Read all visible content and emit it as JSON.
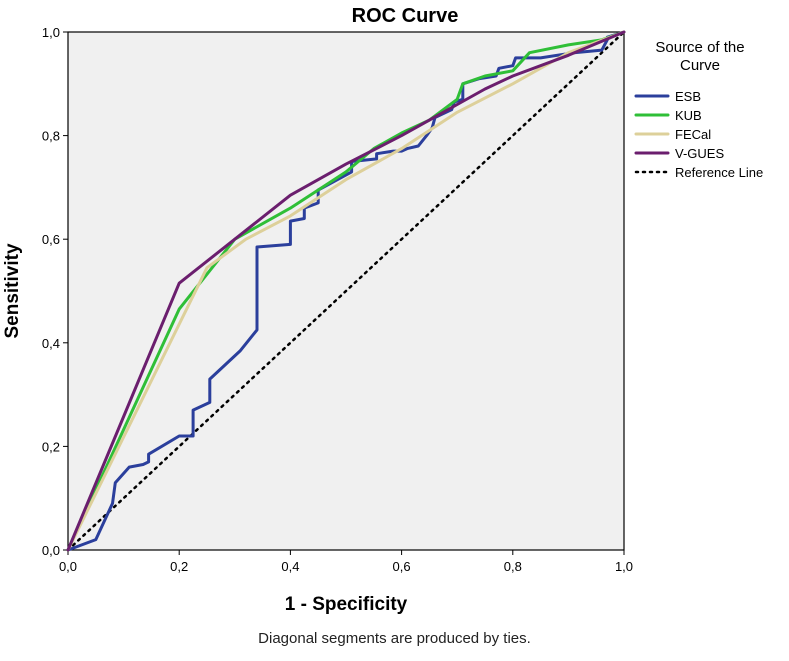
{
  "chart_data": {
    "type": "line",
    "title": "ROC Curve",
    "xlabel": "1 - Specificity",
    "ylabel": "Sensitivity",
    "xlim": [
      0,
      1
    ],
    "ylim": [
      0,
      1
    ],
    "x_ticks": [
      0,
      0.2,
      0.4,
      0.6,
      0.8,
      1.0
    ],
    "y_ticks": [
      0,
      0.2,
      0.4,
      0.6,
      0.8,
      1.0
    ],
    "x_tick_labels": [
      "0,0",
      "0,2",
      "0,4",
      "0,6",
      "0,8",
      "1,0"
    ],
    "y_tick_labels": [
      "0,0",
      "0,2",
      "0,4",
      "0,6",
      "0,8",
      "1,0"
    ],
    "legend_title": "Source of the Curve",
    "legend_position": "right",
    "background_color": "#f0f0f0",
    "series": [
      {
        "name": "ESB",
        "color": "#2b3f9c",
        "style": "solid",
        "points": [
          [
            0,
            0
          ],
          [
            0.05,
            0.02
          ],
          [
            0.08,
            0.09
          ],
          [
            0.085,
            0.13
          ],
          [
            0.11,
            0.16
          ],
          [
            0.135,
            0.165
          ],
          [
            0.145,
            0.17
          ],
          [
            0.145,
            0.185
          ],
          [
            0.2,
            0.22
          ],
          [
            0.225,
            0.22
          ],
          [
            0.225,
            0.27
          ],
          [
            0.245,
            0.28
          ],
          [
            0.255,
            0.285
          ],
          [
            0.255,
            0.33
          ],
          [
            0.31,
            0.385
          ],
          [
            0.34,
            0.425
          ],
          [
            0.34,
            0.585
          ],
          [
            0.4,
            0.59
          ],
          [
            0.4,
            0.635
          ],
          [
            0.425,
            0.64
          ],
          [
            0.425,
            0.66
          ],
          [
            0.45,
            0.67
          ],
          [
            0.45,
            0.695
          ],
          [
            0.51,
            0.73
          ],
          [
            0.51,
            0.75
          ],
          [
            0.555,
            0.755
          ],
          [
            0.555,
            0.765
          ],
          [
            0.585,
            0.77
          ],
          [
            0.6,
            0.77
          ],
          [
            0.61,
            0.775
          ],
          [
            0.63,
            0.78
          ],
          [
            0.645,
            0.8
          ],
          [
            0.655,
            0.815
          ],
          [
            0.66,
            0.835
          ],
          [
            0.69,
            0.85
          ],
          [
            0.695,
            0.865
          ],
          [
            0.71,
            0.87
          ],
          [
            0.71,
            0.9
          ],
          [
            0.74,
            0.91
          ],
          [
            0.77,
            0.915
          ],
          [
            0.775,
            0.93
          ],
          [
            0.8,
            0.935
          ],
          [
            0.805,
            0.95
          ],
          [
            0.83,
            0.95
          ],
          [
            0.85,
            0.95
          ],
          [
            0.91,
            0.96
          ],
          [
            0.96,
            0.965
          ],
          [
            0.97,
            0.985
          ],
          [
            0.97,
            0.99
          ],
          [
            1,
            1
          ]
        ]
      },
      {
        "name": "KUB",
        "color": "#2fbf37",
        "style": "solid",
        "points": [
          [
            0,
            0
          ],
          [
            0.2,
            0.465
          ],
          [
            0.3,
            0.6
          ],
          [
            0.4,
            0.66
          ],
          [
            0.45,
            0.695
          ],
          [
            0.5,
            0.73
          ],
          [
            0.55,
            0.775
          ],
          [
            0.6,
            0.805
          ],
          [
            0.65,
            0.83
          ],
          [
            0.7,
            0.87
          ],
          [
            0.71,
            0.9
          ],
          [
            0.75,
            0.915
          ],
          [
            0.8,
            0.925
          ],
          [
            0.83,
            0.96
          ],
          [
            0.9,
            0.975
          ],
          [
            0.96,
            0.985
          ],
          [
            1,
            1
          ]
        ]
      },
      {
        "name": "FECal",
        "color": "#ddd09a",
        "style": "solid",
        "points": [
          [
            0,
            0
          ],
          [
            0.25,
            0.545
          ],
          [
            0.32,
            0.6
          ],
          [
            0.4,
            0.645
          ],
          [
            0.5,
            0.715
          ],
          [
            0.6,
            0.775
          ],
          [
            0.7,
            0.845
          ],
          [
            0.8,
            0.9
          ],
          [
            0.9,
            0.96
          ],
          [
            1,
            1
          ]
        ]
      },
      {
        "name": "V-GUES",
        "color": "#6b1e6e",
        "style": "solid",
        "points": [
          [
            0,
            0
          ],
          [
            0.2,
            0.515
          ],
          [
            0.3,
            0.6
          ],
          [
            0.4,
            0.685
          ],
          [
            0.5,
            0.745
          ],
          [
            0.6,
            0.8
          ],
          [
            0.65,
            0.83
          ],
          [
            0.7,
            0.86
          ],
          [
            0.75,
            0.89
          ],
          [
            0.8,
            0.915
          ],
          [
            0.9,
            0.955
          ],
          [
            1,
            1
          ]
        ]
      },
      {
        "name": "Reference Line",
        "color": "#000000",
        "style": "dotted",
        "points": [
          [
            0,
            0
          ],
          [
            1,
            1
          ]
        ]
      }
    ]
  },
  "footnote": "Diagonal segments are produced by ties."
}
